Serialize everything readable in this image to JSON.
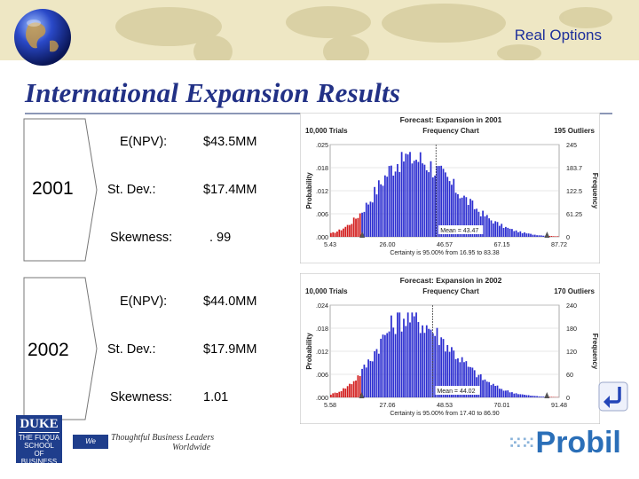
{
  "header": {
    "title": "Real Options"
  },
  "slide": {
    "title": "International Expansion Results"
  },
  "years": [
    {
      "year": "2001",
      "stats": [
        {
          "label": "E(NPV):",
          "value": "$43.5MM"
        },
        {
          "label": "St. Dev.:",
          "value": "$17.4MM"
        },
        {
          "label": "Skewness:",
          "value": ". 99"
        }
      ]
    },
    {
      "year": "2002",
      "stats": [
        {
          "label": "E(NPV):",
          "value": "$44.0MM"
        },
        {
          "label": "St. Dev.:",
          "value": "$17.9MM"
        },
        {
          "label": "Skewness:",
          "value": "1.01"
        }
      ]
    }
  ],
  "chart_data": [
    {
      "type": "bar",
      "title": "Forecast: Expansion in 2001",
      "trials": "10,000 Trials",
      "subtitle": "Frequency Chart",
      "outliers": "195 Outliers",
      "ylabel": "Probability",
      "ylabel_right": "Frequency",
      "y_ticks_left": [
        ".025",
        ".018",
        ".012",
        ".006",
        ".000"
      ],
      "y_ticks_right": [
        "245",
        "183.7",
        "122.5",
        "61.25",
        "0"
      ],
      "x_ticks": [
        "5.43",
        "26.00",
        "46.57",
        "67.15",
        "87.72"
      ],
      "mean_label": "Mean = 43.47",
      "certainty": "Certainty is 95.00% from 16.95 to 83.38",
      "x_range": [
        5.43,
        87.72
      ],
      "ylim": [
        0,
        0.025
      ],
      "bar_color": "#2d2fd0",
      "tail_color": "#d21d1d"
    },
    {
      "type": "bar",
      "title": "Forecast: Expansion in 2002",
      "trials": "10,000 Trials",
      "subtitle": "Frequency Chart",
      "outliers": "170 Outliers",
      "ylabel": "Probability",
      "ylabel_right": "Frequency",
      "y_ticks_left": [
        ".024",
        ".018",
        ".012",
        ".006",
        ".000"
      ],
      "y_ticks_right": [
        "240",
        "180",
        "120",
        "60",
        "0"
      ],
      "x_ticks": [
        "5.58",
        "27.06",
        "48.53",
        "70.01",
        "91.48"
      ],
      "mean_label": "Mean = 44.02",
      "certainty": "Certainty is 95.00% from 17.40 to 86.90",
      "x_range": [
        5.58,
        91.48
      ],
      "ylim": [
        0,
        0.024
      ],
      "bar_color": "#2d2fd0",
      "tail_color": "#d21d1d"
    }
  ],
  "footer": {
    "logo_name": "DUKE",
    "logo_lines": [
      "THE FUQUA",
      "SCHOOL",
      "OF BUSINESS"
    ],
    "tagline_box": "We Educate",
    "tagline_rest": "Thoughtful Business Leaders",
    "tagline_end": "Worldwide",
    "brand": "Probil"
  },
  "icons": {
    "globe": "globe-icon",
    "return": "return-arrow-icon",
    "brand_dots": "dots-icon"
  },
  "colors": {
    "header_band": "#eee7c4",
    "title": "#223186",
    "header_text": "#1d2f9b"
  }
}
